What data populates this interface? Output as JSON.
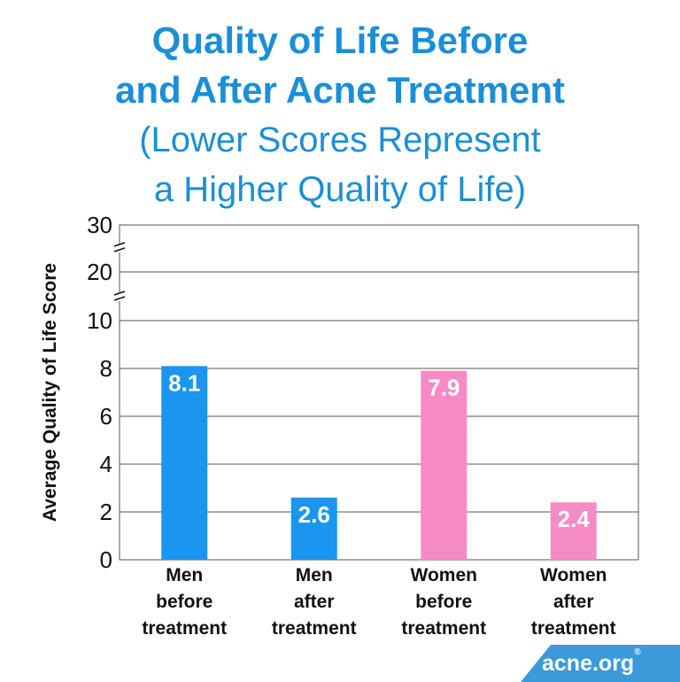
{
  "chart_data": {
    "type": "bar",
    "title_line1": "Quality of Life Before",
    "title_line2": "and After Acne Treatment",
    "subtitle_line1": "(Lower Scores Represent",
    "subtitle_line2": "a Higher Quality of Life)",
    "ylabel": "Average Quality of Life Score",
    "xlabel": "",
    "ylim": [
      0,
      30
    ],
    "axis_break": true,
    "y_ticks": [
      0,
      2,
      4,
      6,
      8,
      10,
      20,
      30
    ],
    "grid": true,
    "categories": [
      [
        "Men",
        "before",
        "treatment"
      ],
      [
        "Men",
        "after",
        "treatment"
      ],
      [
        "Women",
        "before",
        "treatment"
      ],
      [
        "Women",
        "after",
        "treatment"
      ]
    ],
    "values": [
      8.1,
      2.6,
      7.9,
      2.4
    ],
    "value_labels": [
      "8.1",
      "2.6",
      "7.9",
      "2.4"
    ],
    "bar_colors": [
      "#1a96f0",
      "#1a96f0",
      "#f68ac4",
      "#f68ac4"
    ]
  },
  "logo": {
    "text": "acne.org",
    "mark": "®"
  }
}
